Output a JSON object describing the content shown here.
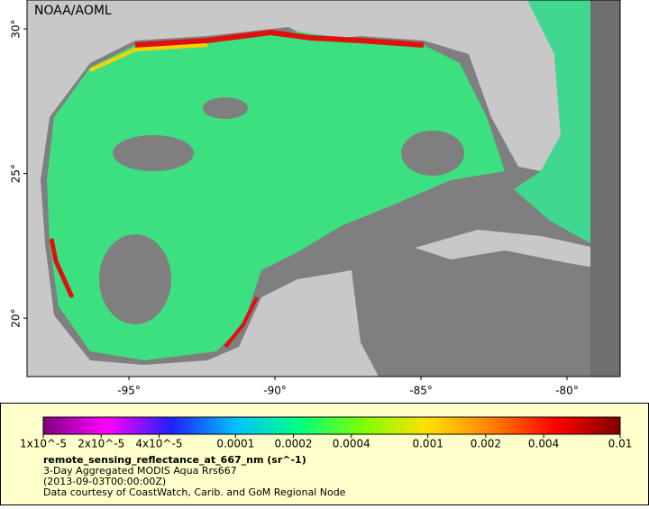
{
  "map": {
    "credit": "NOAA/AOML",
    "xlim": [
      -98.49,
      -78.18
    ],
    "ylim": [
      17.98,
      31.0
    ],
    "xticks": [
      {
        "value": -95,
        "label": "-95°"
      },
      {
        "value": -90,
        "label": "-90°"
      },
      {
        "value": -85,
        "label": "-85°"
      },
      {
        "value": -80,
        "label": "-80°"
      }
    ],
    "yticks": [
      {
        "value": 30,
        "label": "30°"
      },
      {
        "value": 25,
        "label": "25°"
      },
      {
        "value": 20,
        "label": "20°"
      }
    ]
  },
  "colorbar": {
    "log_scale": true,
    "lim": [
      1e-05,
      0.01
    ],
    "colors": [
      "#800080",
      "#ff00ff",
      "#2020ff",
      "#00c0ff",
      "#00ff80",
      "#80ff00",
      "#ffe000",
      "#ff8000",
      "#ff0000",
      "#800000"
    ],
    "ticks": [
      {
        "value": 1e-05,
        "label": "1x10^-5"
      },
      {
        "value": 2e-05,
        "label": "2x10^-5"
      },
      {
        "value": 4e-05,
        "label": "4x10^-5"
      },
      {
        "value": 0.0001,
        "label": "0.0001"
      },
      {
        "value": 0.0002,
        "label": "0.0002"
      },
      {
        "value": 0.0004,
        "label": "0.0004"
      },
      {
        "value": 0.001,
        "label": "0.001"
      },
      {
        "value": 0.002,
        "label": "0.002"
      },
      {
        "value": 0.004,
        "label": "0.004"
      },
      {
        "value": 0.01,
        "label": "0.01"
      }
    ]
  },
  "caption": {
    "variable": "remote_sensing_reflectance_at_667_nm (sr^-1)",
    "lines": [
      "3-Day Aggregated MODIS Aqua Rrs667",
      "(2013-09-03T00:00:00Z)",
      "Data courtesy of CoastWatch, Carib. and GoM Regional Node"
    ]
  }
}
